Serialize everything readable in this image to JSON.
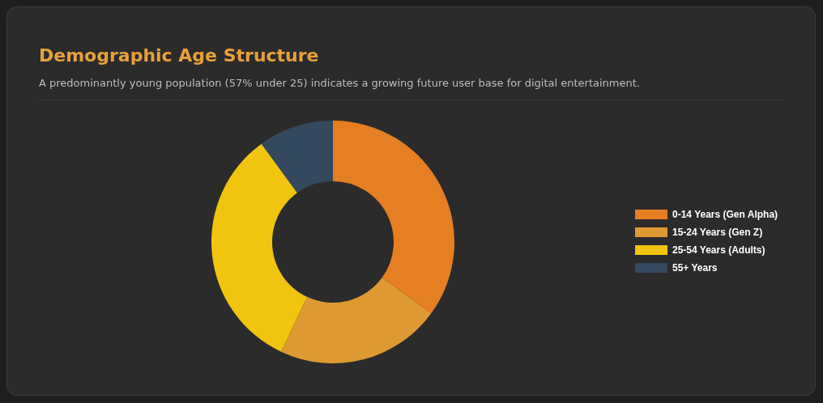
{
  "chart_data": {
    "type": "donut",
    "title": "Demographic Age Structure",
    "subtitle": "A predominantly young population (57% under 25) indicates a growing future user base for digital entertainment.",
    "categories": [
      "0-14 Years (Gen Alpha)",
      "15-24 Years (Gen Z)",
      "25-54 Years (Adults)",
      "55+ Years"
    ],
    "values": [
      35,
      22,
      33,
      10
    ],
    "colors": [
      "#e67e22",
      "#df9933",
      "#f1c40f",
      "#34495e"
    ],
    "legend": "right"
  }
}
